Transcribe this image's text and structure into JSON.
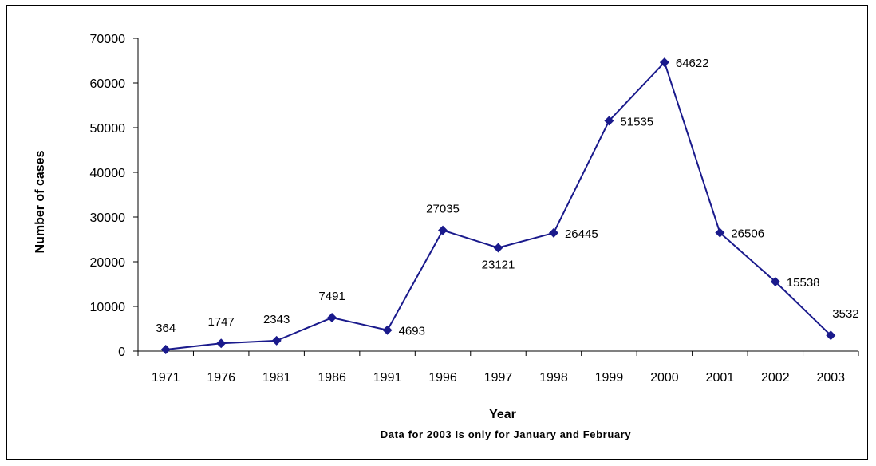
{
  "chart_data": {
    "type": "line",
    "categories": [
      "1971",
      "1976",
      "1981",
      "1986",
      "1991",
      "1996",
      "1997",
      "1998",
      "1999",
      "2000",
      "2001",
      "2002",
      "2003"
    ],
    "series": [
      {
        "values": [
          364,
          1747,
          2343,
          7491,
          4693,
          27035,
          23121,
          26445,
          51535,
          64622,
          26506,
          15538,
          3532
        ]
      }
    ],
    "data_labels": [
      "364",
      "1747",
      "2343",
      "7491",
      "4693",
      "27035",
      "23121",
      "26445",
      "51535",
      "64622",
      "26506",
      "15538",
      "3532"
    ],
    "yticks": [
      "0",
      "10000",
      "20000",
      "30000",
      "40000",
      "50000",
      "60000",
      "70000"
    ],
    "ylim": [
      0,
      70000
    ],
    "xlabel": "Year",
    "ylabel": "Number of cases",
    "note": "Data for 2003 Is only for January and February",
    "grid": false,
    "legend": "none",
    "line_color": "#1a1a8c",
    "marker": "diamond"
  }
}
